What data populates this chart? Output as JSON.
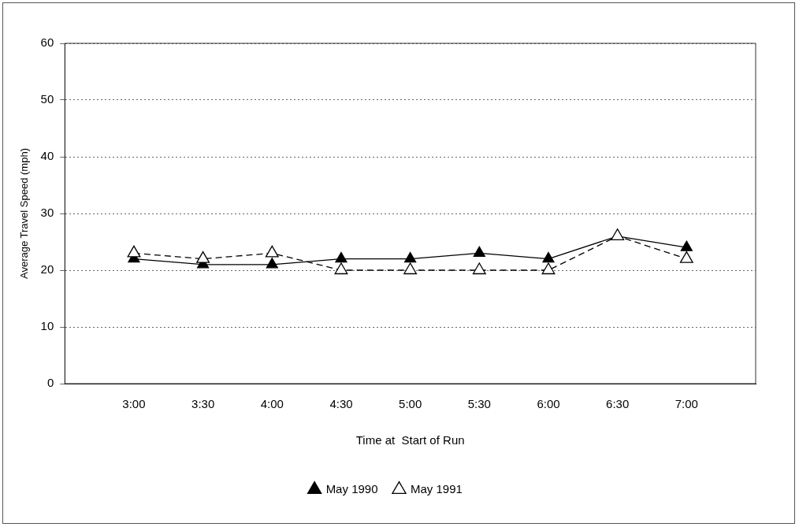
{
  "chart_data": {
    "type": "line",
    "xlabel": "Time at  Start of Run",
    "ylabel": "Average Travel Speed (mph)",
    "categories": [
      "3:00",
      "3:30",
      "4:00",
      "4:30",
      "5:00",
      "5:30",
      "6:00",
      "6:30",
      "7:00"
    ],
    "series": [
      {
        "name": "May 1990",
        "color": "#000000",
        "line_style": "solid",
        "values": [
          22,
          21,
          21,
          22,
          22,
          23,
          22,
          26,
          24
        ]
      },
      {
        "name": "May 1991",
        "color": "#000000",
        "line_style": "dashed",
        "values": [
          23,
          22,
          23,
          20,
          20,
          20,
          20,
          26,
          22
        ]
      }
    ],
    "ylim": [
      0,
      60
    ],
    "yticks": [
      0,
      10,
      20,
      30,
      40,
      50,
      60
    ],
    "grid": "y",
    "legend": "bottom",
    "marker": "triangle"
  }
}
